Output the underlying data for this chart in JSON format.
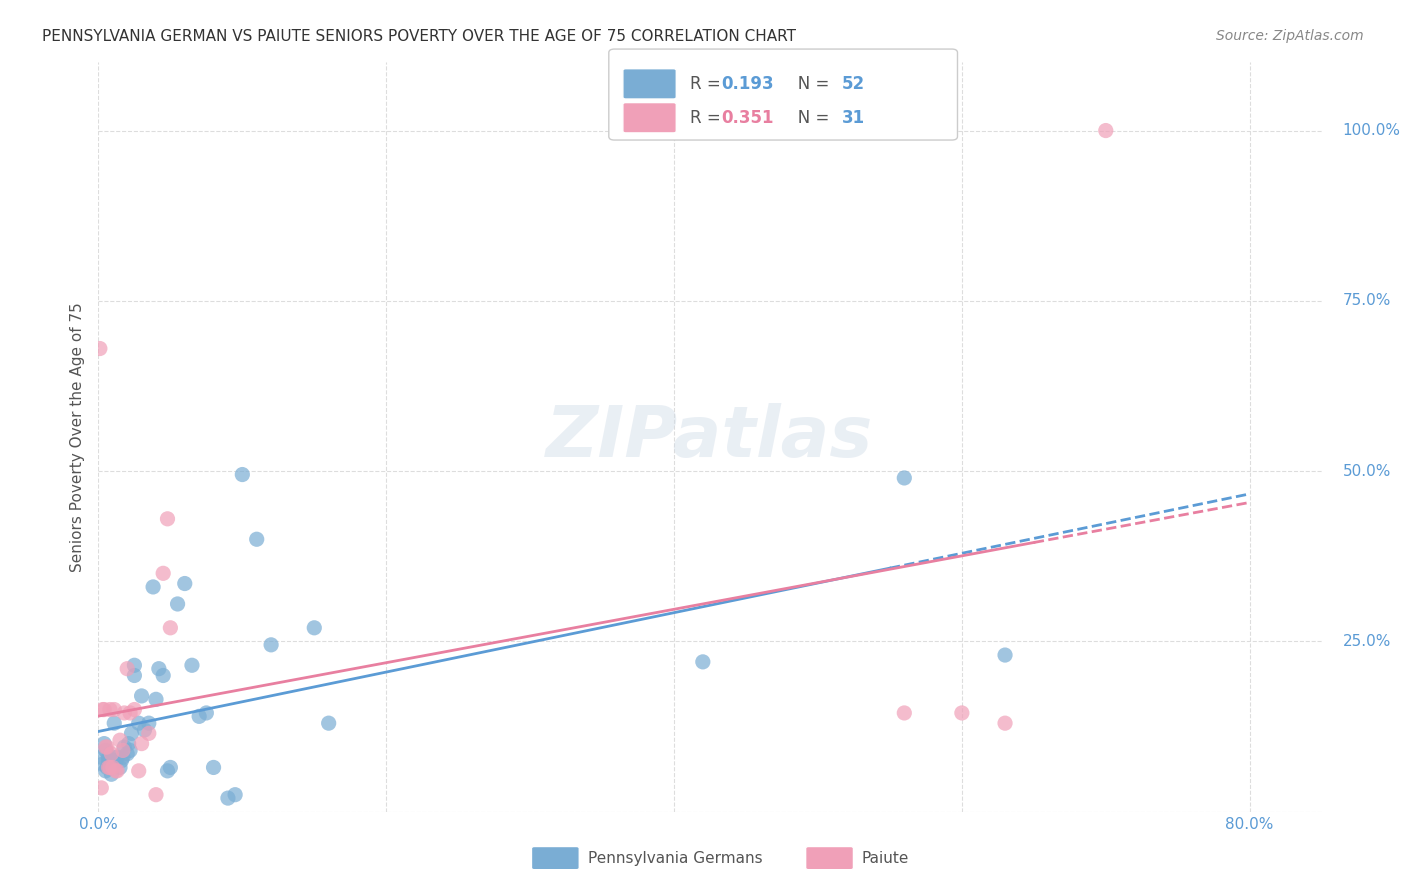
{
  "title": "PENNSYLVANIA GERMAN VS PAIUTE SENIORS POVERTY OVER THE AGE OF 75 CORRELATION CHART",
  "source": "Source: ZipAtlas.com",
  "ylabel": "Seniors Poverty Over the Age of 75",
  "xlim": [
    0.0,
    0.85
  ],
  "ylim": [
    0.0,
    1.1
  ],
  "ytick_positions": [
    0.0,
    0.25,
    0.5,
    0.75,
    1.0
  ],
  "yticklabels": [
    "",
    "25.0%",
    "50.0%",
    "75.0%",
    "100.0%"
  ],
  "bg_color": "#ffffff",
  "grid_color": "#dddddd",
  "series1_color": "#7aadd4",
  "series2_color": "#f0a0b8",
  "series1_label": "Pennsylvania Germans",
  "series2_label": "Paiute",
  "series1_R": "0.193",
  "series1_N": "52",
  "series2_R": "0.351",
  "series2_N": "31",
  "trend1_color": "#5b9bd5",
  "trend2_color": "#e87fa0",
  "watermark": "ZIPatlas",
  "series1_x": [
    0.002,
    0.003,
    0.004,
    0.005,
    0.005,
    0.006,
    0.007,
    0.007,
    0.008,
    0.008,
    0.009,
    0.01,
    0.01,
    0.011,
    0.012,
    0.013,
    0.015,
    0.016,
    0.017,
    0.018,
    0.02,
    0.021,
    0.022,
    0.023,
    0.025,
    0.025,
    0.028,
    0.03,
    0.032,
    0.035,
    0.038,
    0.04,
    0.042,
    0.045,
    0.048,
    0.05,
    0.055,
    0.06,
    0.065,
    0.07,
    0.075,
    0.08,
    0.09,
    0.095,
    0.1,
    0.11,
    0.12,
    0.15,
    0.16,
    0.42,
    0.56,
    0.63
  ],
  "series1_y": [
    0.08,
    0.07,
    0.1,
    0.06,
    0.09,
    0.065,
    0.075,
    0.08,
    0.065,
    0.07,
    0.055,
    0.07,
    0.08,
    0.13,
    0.075,
    0.08,
    0.065,
    0.075,
    0.08,
    0.095,
    0.085,
    0.1,
    0.09,
    0.115,
    0.2,
    0.215,
    0.13,
    0.17,
    0.12,
    0.13,
    0.33,
    0.165,
    0.21,
    0.2,
    0.06,
    0.065,
    0.305,
    0.335,
    0.215,
    0.14,
    0.145,
    0.065,
    0.02,
    0.025,
    0.495,
    0.4,
    0.245,
    0.27,
    0.13,
    0.22,
    0.49,
    0.23
  ],
  "series2_x": [
    0.001,
    0.002,
    0.003,
    0.004,
    0.005,
    0.006,
    0.007,
    0.008,
    0.008,
    0.009,
    0.01,
    0.011,
    0.012,
    0.013,
    0.015,
    0.017,
    0.018,
    0.02,
    0.022,
    0.025,
    0.028,
    0.03,
    0.035,
    0.04,
    0.045,
    0.048,
    0.05,
    0.56,
    0.6,
    0.63,
    0.7
  ],
  "series2_y": [
    0.68,
    0.035,
    0.15,
    0.15,
    0.095,
    0.095,
    0.065,
    0.065,
    0.15,
    0.085,
    0.065,
    0.15,
    0.06,
    0.06,
    0.105,
    0.09,
    0.145,
    0.21,
    0.145,
    0.15,
    0.06,
    0.1,
    0.115,
    0.025,
    0.35,
    0.43,
    0.27,
    0.145,
    0.145,
    0.13,
    1.0
  ]
}
